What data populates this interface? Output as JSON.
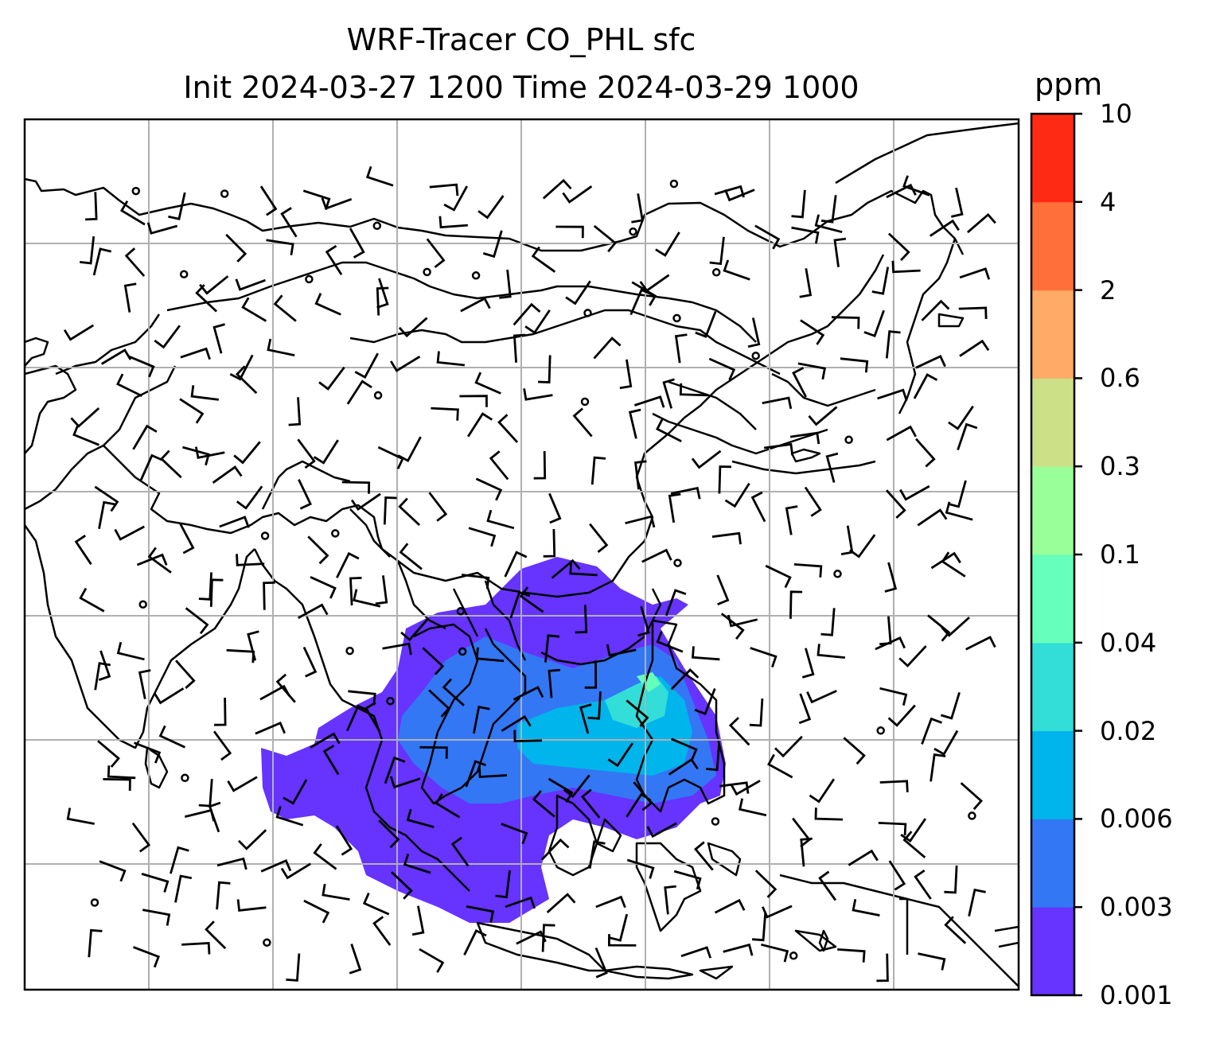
{
  "title_line1": "WRF-Tracer CO_PHL sfc",
  "title_line2": "Init 2024-03-27 1200 Time 2024-03-29 1000",
  "colorbar": {
    "unit": "ppm",
    "levels": [
      "0.001",
      "0.003",
      "0.006",
      "0.02",
      "0.04",
      "0.1",
      "0.3",
      "0.6",
      "2",
      "4",
      "10"
    ],
    "colors": [
      "#6633ff",
      "#3377f5",
      "#00b4ec",
      "#33ddd8",
      "#66ffbb",
      "#99ff99",
      "#cce088",
      "#ffaa66",
      "#ff6f3a",
      "#ff2a14"
    ]
  },
  "map": {
    "overlays": [
      "coastlines",
      "country-borders",
      "lat-lon-grid",
      "wind-barbs",
      "tracer-concentration-fill"
    ]
  }
}
